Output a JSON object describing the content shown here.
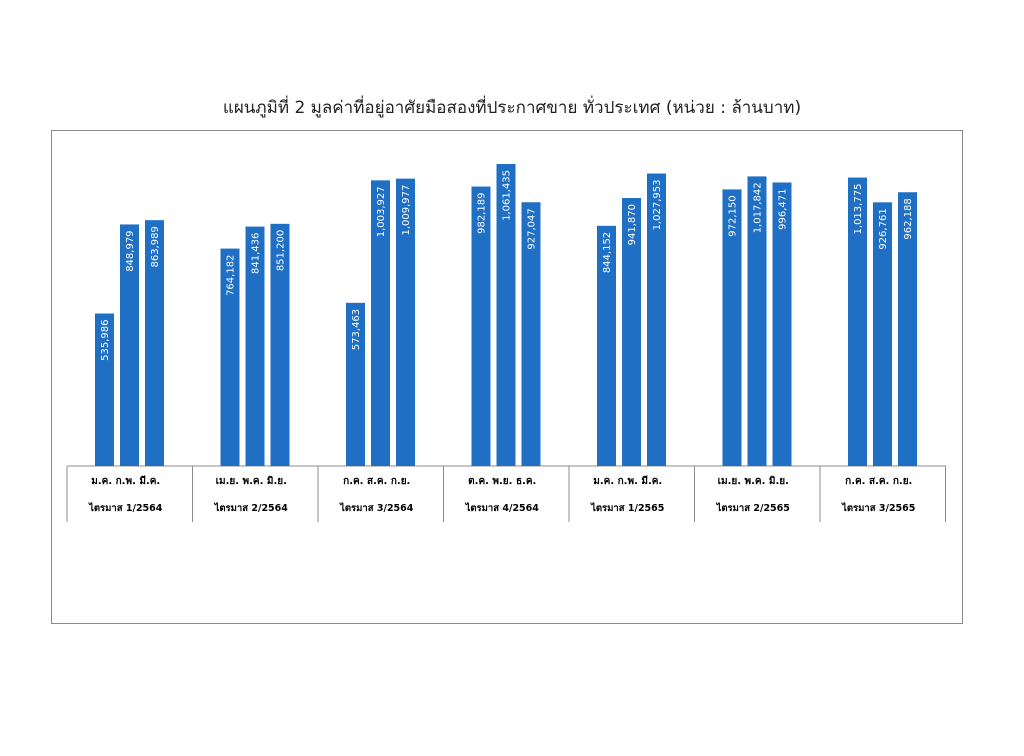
{
  "chart_data": {
    "type": "bar",
    "title": "แผนภูมิที่ 2 มูลค่าที่อยู่อาศัยมือสองที่ประกาศขาย ทั่วประเทศ (หน่วย : ล้านบาท)",
    "groups": [
      {
        "quarter": "ไตรมาส 1/2564",
        "months": [
          "ม.ค.",
          "ก.พ.",
          "มี.ค."
        ],
        "values": [
          535986,
          848979,
          863989
        ],
        "labels": [
          "535,986",
          "848,979",
          "863,989"
        ]
      },
      {
        "quarter": "ไตรมาส 2/2564",
        "months": [
          "เม.ย.",
          "พ.ค.",
          "มิ.ย."
        ],
        "values": [
          764182,
          841436,
          851200
        ],
        "labels": [
          "764,182",
          "841,436",
          "851,200"
        ]
      },
      {
        "quarter": "ไตรมาส 3/2564",
        "months": [
          "ก.ค.",
          "ส.ค.",
          "ก.ย."
        ],
        "values": [
          573463,
          1003927,
          1009977
        ],
        "labels": [
          "573,463",
          "1,003,927",
          "1,009,977"
        ]
      },
      {
        "quarter": "ไตรมาส 4/2564",
        "months": [
          "ต.ค.",
          "พ.ย.",
          "ธ.ค."
        ],
        "values": [
          982189,
          1061435,
          927047
        ],
        "labels": [
          "982,189",
          "1,061,435",
          "927,047"
        ]
      },
      {
        "quarter": "ไตรมาส 1/2565",
        "months": [
          "ม.ค.",
          "ก.พ.",
          "มี.ค."
        ],
        "values": [
          844152,
          941870,
          1027953
        ],
        "labels": [
          "844,152",
          "941,870",
          "1,027,953"
        ]
      },
      {
        "quarter": "ไตรมาส 2/2565",
        "months": [
          "เม.ย.",
          "พ.ค.",
          "มิ.ย."
        ],
        "values": [
          972150,
          1017842,
          996471
        ],
        "labels": [
          "972,150",
          "1,017,842",
          "996,471"
        ]
      },
      {
        "quarter": "ไตรมาส 3/2565",
        "months": [
          "ก.ค.",
          "ส.ค.",
          "ก.ย."
        ],
        "values": [
          1013775,
          926761,
          962188
        ],
        "labels": [
          "1,013,775",
          "926,761",
          "962,188"
        ]
      }
    ],
    "bar_color": "#1f6fc5",
    "grid": false,
    "legend": "none"
  }
}
